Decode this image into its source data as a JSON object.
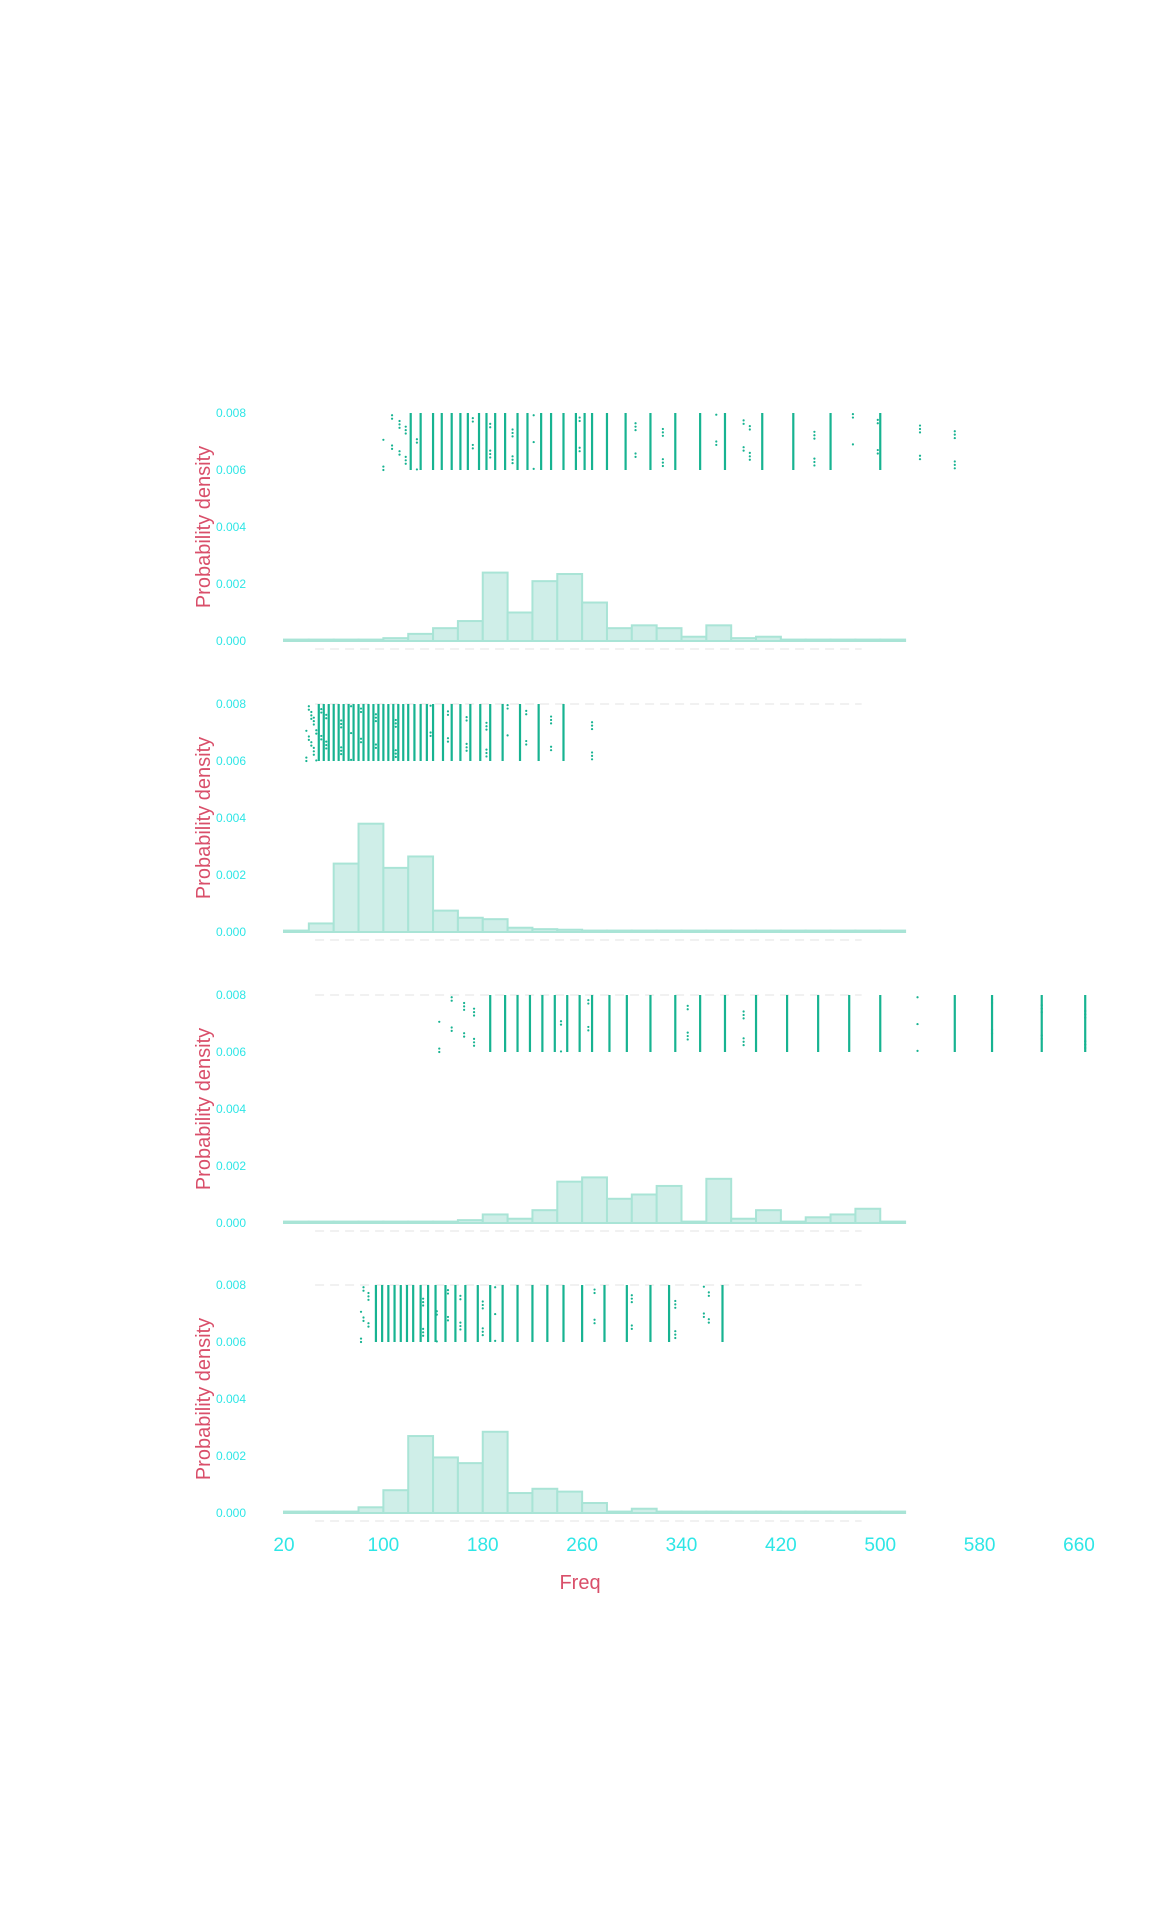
{
  "chart_data": {
    "type": "bar",
    "xlabel": "Freq",
    "ylabel": "Probability density",
    "xticks": [
      20,
      100,
      180,
      260,
      340,
      420,
      500,
      580,
      660
    ],
    "yticks": [
      "0.000",
      "0.002",
      "0.004",
      "0.006",
      "0.008"
    ],
    "xlim": [
      20,
      660
    ],
    "ylim": [
      0,
      0.008
    ],
    "bin_edges": [
      20,
      40,
      60,
      80,
      100,
      120,
      140,
      160,
      180,
      200,
      220,
      240,
      260,
      280,
      300,
      320,
      340,
      360,
      380,
      400,
      420,
      440,
      460,
      480,
      500,
      520
    ],
    "rug_y_range": [
      0.006,
      0.008
    ],
    "colors": {
      "bar_fill": "#cfeee8",
      "bar_edge": "#a9e4d6",
      "rug": "#17b391",
      "tick_text": "#2ee6e6",
      "label_text": "#d94f6a"
    },
    "panels": [
      {
        "density": [
          5e-05,
          5e-05,
          5e-05,
          5e-05,
          0.0001,
          0.00025,
          0.00045,
          0.0007,
          0.0024,
          0.001,
          0.0021,
          0.00235,
          0.00135,
          0.00045,
          0.00055,
          0.00045,
          0.00015,
          0.00055,
          0.0001,
          0.00015,
          5e-05,
          5e-05,
          5e-05,
          5e-05,
          5e-05
        ],
        "rug_lines": [
          122,
          130,
          140,
          147,
          155,
          162,
          168,
          177,
          183,
          190,
          198,
          208,
          216,
          227,
          235,
          245,
          255,
          262,
          268,
          280,
          295,
          315,
          335,
          355,
          375,
          405,
          430,
          460,
          500
        ],
        "rug_dots": [
          100,
          107,
          113,
          118,
          127,
          172,
          186,
          204,
          221,
          258,
          303,
          325,
          368,
          390,
          395,
          447,
          478,
          498,
          532,
          560
        ]
      },
      {
        "density": [
          5e-05,
          0.0003,
          0.0024,
          0.0038,
          0.00225,
          0.00265,
          0.00075,
          0.0005,
          0.00045,
          0.00015,
          0.0001,
          8e-05,
          5e-05,
          5e-05,
          5e-05,
          5e-05,
          5e-05,
          5e-05,
          5e-05,
          5e-05,
          5e-05,
          5e-05,
          5e-05,
          5e-05,
          5e-05
        ],
        "rug_lines": [
          48,
          52,
          56,
          60,
          64,
          68,
          72,
          76,
          80,
          84,
          88,
          92,
          96,
          100,
          104,
          108,
          112,
          116,
          120,
          125,
          130,
          135,
          140,
          148,
          155,
          162,
          170,
          178,
          186,
          196,
          210,
          225,
          245
        ],
        "rug_dots": [
          38,
          40,
          42,
          44,
          46,
          50,
          54,
          66,
          74,
          82,
          94,
          110,
          138,
          152,
          167,
          183,
          200,
          215,
          235,
          268
        ]
      },
      {
        "density": [
          5e-05,
          5e-05,
          5e-05,
          5e-05,
          5e-05,
          5e-05,
          5e-05,
          0.0001,
          0.0003,
          0.00015,
          0.00045,
          0.00145,
          0.0016,
          0.00085,
          0.001,
          0.0013,
          5e-05,
          0.00155,
          0.00015,
          0.00045,
          5e-05,
          0.0002,
          0.0003,
          0.0005,
          5e-05
        ],
        "rug_lines": [
          186,
          198,
          208,
          218,
          228,
          238,
          248,
          258,
          268,
          282,
          296,
          315,
          335,
          355,
          375,
          400,
          425,
          450,
          475,
          500,
          560,
          590,
          630,
          665
        ],
        "rug_dots": [
          145,
          155,
          165,
          173,
          243,
          265,
          345,
          390,
          530,
          590,
          630,
          665
        ]
      },
      {
        "density": [
          5e-05,
          5e-05,
          5e-05,
          0.0002,
          0.0008,
          0.0027,
          0.00195,
          0.00175,
          0.00285,
          0.0007,
          0.00085,
          0.00075,
          0.00035,
          5e-05,
          0.00015,
          5e-05,
          5e-05,
          5e-05,
          5e-05,
          5e-05,
          5e-05,
          5e-05,
          5e-05,
          5e-05,
          5e-05
        ],
        "rug_lines": [
          94,
          99,
          104,
          109,
          114,
          119,
          124,
          130,
          136,
          142,
          150,
          158,
          166,
          176,
          186,
          196,
          208,
          220,
          232,
          245,
          260,
          278,
          296,
          315,
          330,
          373
        ],
        "rug_dots": [
          82,
          84,
          88,
          132,
          143,
          152,
          162,
          180,
          190,
          270,
          300,
          335,
          358,
          362
        ]
      }
    ]
  }
}
